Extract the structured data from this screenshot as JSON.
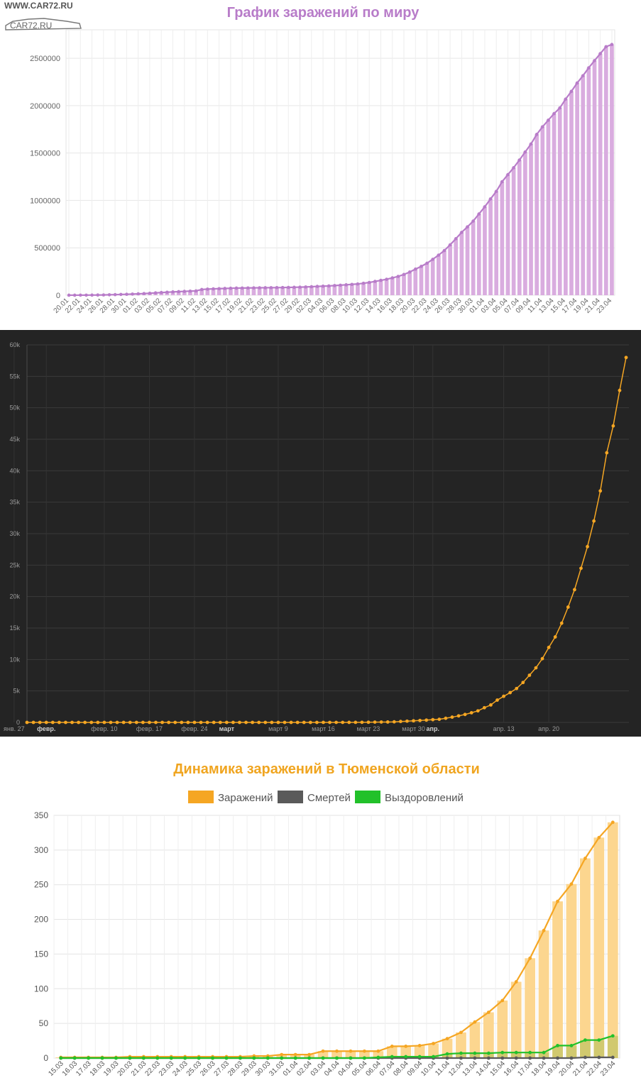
{
  "watermark": {
    "text": "WWW.CAR72.RU",
    "logo": "CAR72.RU"
  },
  "colors": {
    "purple": "#b87cc9",
    "purple_bar": "#d9acdf",
    "orange": "#f5a623",
    "orange_bar": "#fcd68f",
    "green": "#22c12a",
    "gray": "#5a5a5a",
    "dark_bg": "#242424",
    "title_orange": "#f0a520"
  },
  "chart_data": [
    {
      "type": "bar",
      "title": "График заражений по миру",
      "ylim": [
        0,
        2800000
      ],
      "y_ticks": [
        "2500000",
        "2000000",
        "1500000",
        "1000000",
        "500000",
        "0"
      ],
      "y_tick_values": [
        2500000,
        2000000,
        1500000,
        1000000,
        500000,
        0
      ],
      "x_tick_labels": [
        "20.01",
        "22.01",
        "24.01",
        "26.01",
        "28.01",
        "30.01",
        "01.02",
        "03.02",
        "05.02",
        "07.02",
        "09.02",
        "11.02",
        "13.02",
        "15.02",
        "17.02",
        "19.02",
        "21.02",
        "23.02",
        "25.02",
        "27.02",
        "29.02",
        "02.03",
        "04.03",
        "06.03",
        "08.03",
        "10.03",
        "12.03",
        "14.03",
        "16.03",
        "18.03",
        "20.03",
        "22.03",
        "24.03",
        "26.03",
        "28.03",
        "30.03",
        "01.04",
        "03.04",
        "05.04",
        "07.04",
        "09.04",
        "11.04",
        "13.04",
        "15.04",
        "17.04",
        "19.04",
        "21.04",
        "23.04"
      ],
      "values": [
        300,
        400,
        600,
        900,
        1300,
        2000,
        2800,
        4500,
        6000,
        8000,
        9800,
        11900,
        14600,
        17400,
        20600,
        24500,
        28300,
        31500,
        34900,
        37600,
        40600,
        43100,
        45200,
        60300,
        64400,
        67100,
        69000,
        71300,
        73300,
        75200,
        75700,
        76700,
        77700,
        78600,
        78900,
        79500,
        80100,
        81000,
        82100,
        83700,
        85100,
        87100,
        89700,
        92800,
        95200,
        97800,
        101800,
        105800,
        109800,
        114000,
        118600,
        125900,
        134600,
        145700,
        157000,
        168000,
        182700,
        198000,
        218800,
        244600,
        275400,
        304400,
        337700,
        378900,
        422600,
        471300,
        531600,
        596400,
        663400,
        721100,
        782400,
        857500,
        932600,
        1016000,
        1095800,
        1197400,
        1272100,
        1345000,
        1426000,
        1511100,
        1595400,
        1697000,
        1777000,
        1846700,
        1916000,
        1976000,
        2069000,
        2151000,
        2239000,
        2316000,
        2399000,
        2475000,
        2549000,
        2622000,
        2645000
      ],
      "color": "#b87cc9",
      "xlabel": "",
      "ylabel": ""
    },
    {
      "type": "line",
      "ylim": [
        0,
        60000
      ],
      "y_ticks": [
        "60k",
        "55k",
        "50k",
        "45k",
        "40k",
        "35k",
        "30k",
        "25k",
        "20k",
        "15k",
        "10k",
        "5k",
        "0"
      ],
      "y_tick_values": [
        60000,
        55000,
        50000,
        45000,
        40000,
        35000,
        30000,
        25000,
        20000,
        15000,
        10000,
        5000,
        0
      ],
      "x_tick_labels": [
        "янв. 27",
        "февр.",
        "февр. 10",
        "февр. 17",
        "февр. 24",
        "март",
        "март 9",
        "март 16",
        "март 23",
        "март 30",
        "апр.",
        "апр. 13",
        "апр. 20"
      ],
      "x_tick_days": [
        -2,
        3,
        12,
        19,
        26,
        31,
        39,
        46,
        53,
        60,
        63,
        74,
        81
      ],
      "x_tick_bold": [
        false,
        true,
        false,
        false,
        false,
        true,
        false,
        false,
        false,
        false,
        true,
        false,
        false
      ],
      "start_date": "2020-01-22",
      "values": [
        0,
        0,
        0,
        0,
        0,
        0,
        0,
        0,
        0,
        0,
        0,
        0,
        0,
        0,
        0,
        0,
        0,
        0,
        0,
        0,
        0,
        0,
        0,
        0,
        0,
        0,
        0,
        0,
        0,
        0,
        0,
        0,
        0,
        0,
        0,
        0,
        0,
        0,
        0,
        0,
        0,
        0,
        0,
        0,
        0,
        0,
        2,
        2,
        3,
        4,
        7,
        10,
        17,
        28,
        45,
        59,
        63,
        90,
        147,
        199,
        253,
        306,
        367,
        438,
        495,
        658,
        840,
        1036,
        1264,
        1534,
        1836,
        2337,
        2777,
        3548,
        4149,
        4731,
        5389,
        6343,
        7497,
        8672,
        10131,
        11917,
        13584,
        15770,
        18328,
        21102,
        24490,
        27938,
        32008,
        36793,
        42853,
        47121,
        52763,
        57999
      ],
      "color": "#f5a623",
      "background": "#242424"
    },
    {
      "type": "bar",
      "title": "Динамика заражений в Тюменской области",
      "legend": [
        "Заражений",
        "Смертей",
        "Выздоровлений"
      ],
      "legend_placement": "top",
      "ylim": [
        0,
        350
      ],
      "y_ticks": [
        "350",
        "300",
        "250",
        "200",
        "150",
        "100",
        "50",
        "0"
      ],
      "y_tick_values": [
        350,
        300,
        250,
        200,
        150,
        100,
        50,
        0
      ],
      "categories": [
        "15.03",
        "16.03",
        "17.03",
        "18.03",
        "19.03",
        "20.03",
        "21.03",
        "22.03",
        "23.03",
        "24.03",
        "25.03",
        "26.03",
        "27.03",
        "28.03",
        "29.03",
        "30.03",
        "31.03",
        "01.04",
        "02.04",
        "03.04",
        "04.04",
        "04.04",
        "05.04",
        "06.04",
        "07.04",
        "08.04",
        "09.04",
        "10.04",
        "11.04",
        "12.04",
        "13.04",
        "14.04",
        "15.04",
        "16.04",
        "17.04",
        "18.04",
        "19.04",
        "20.04",
        "21.04",
        "22.04",
        "23.04"
      ],
      "series": [
        {
          "name": "Заражений",
          "values": [
            1,
            1,
            1,
            1,
            1,
            2,
            2,
            2,
            2,
            2,
            2,
            2,
            2,
            2,
            3,
            3,
            5,
            5,
            5,
            10,
            10,
            10,
            10,
            10,
            17,
            17,
            18,
            21,
            28,
            37,
            52,
            66,
            83,
            110,
            144,
            184,
            226,
            251,
            288,
            318,
            340
          ],
          "color": "#f5a623"
        },
        {
          "name": "Смертей",
          "values": [
            0,
            0,
            0,
            0,
            0,
            0,
            0,
            0,
            0,
            0,
            0,
            0,
            0,
            0,
            0,
            0,
            0,
            0,
            0,
            0,
            0,
            0,
            0,
            0,
            0,
            0,
            0,
            0,
            0,
            0,
            0,
            0,
            0,
            0,
            0,
            0,
            0,
            0,
            1,
            1,
            1
          ],
          "color": "#5a5a5a"
        },
        {
          "name": "Выздоровлений",
          "values": [
            0,
            0,
            0,
            0,
            0,
            0,
            0,
            0,
            0,
            0,
            0,
            0,
            0,
            0,
            0,
            0,
            0,
            0,
            0,
            0,
            0,
            0,
            0,
            1,
            2,
            2,
            2,
            2,
            6,
            7,
            7,
            7,
            8,
            8,
            8,
            8,
            18,
            18,
            26,
            26,
            32
          ],
          "color": "#22c12a"
        }
      ],
      "xlabel": "",
      "ylabel": ""
    }
  ]
}
